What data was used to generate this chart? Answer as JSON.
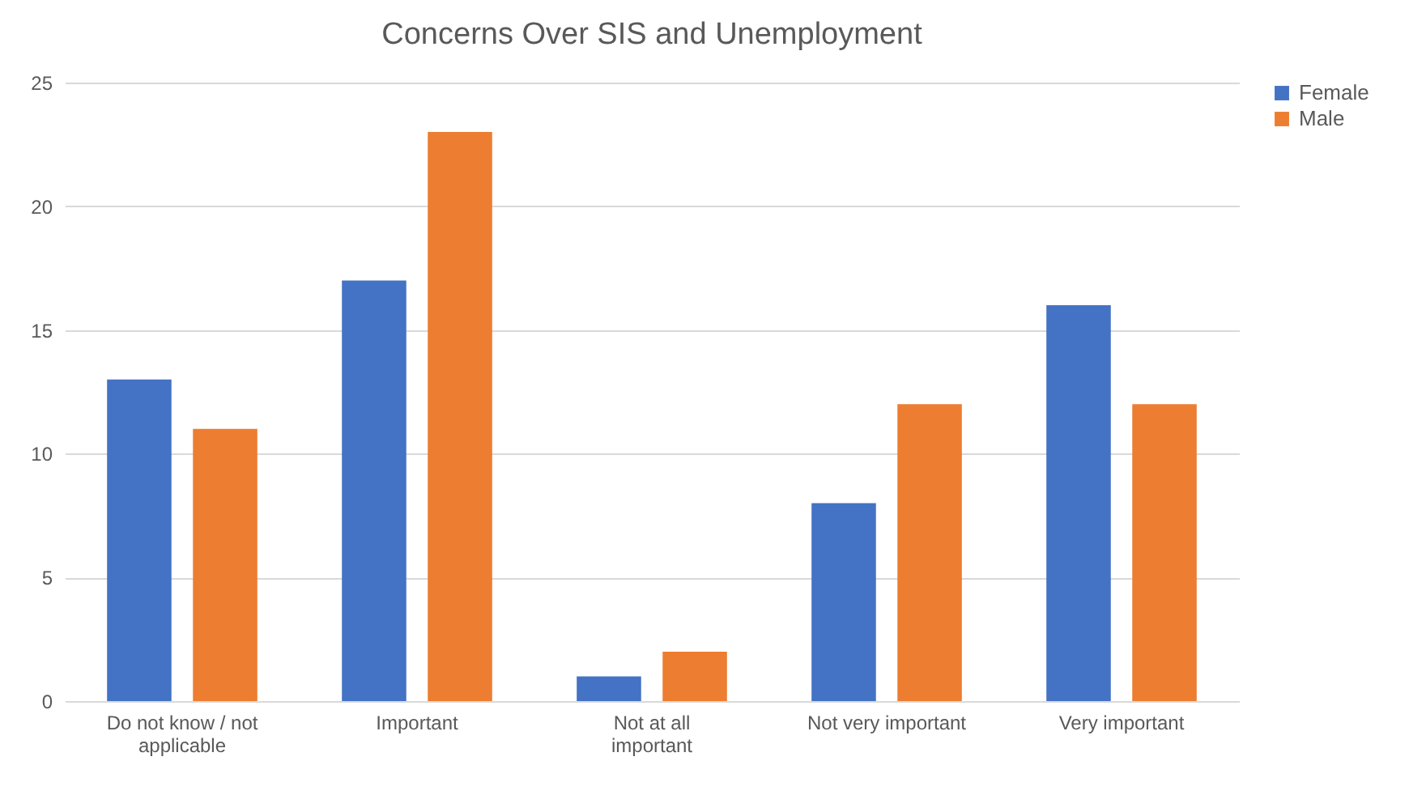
{
  "chart_data": {
    "type": "bar",
    "title": "Concerns Over SIS and Unemployment",
    "categories": [
      "Do not know / not applicable",
      "Important",
      "Not at all important",
      "Not very important",
      "Very important"
    ],
    "series": [
      {
        "name": "Female",
        "color": "#4472c4",
        "values": [
          13,
          17,
          1,
          8,
          16
        ]
      },
      {
        "name": "Male",
        "color": "#ed7d31",
        "values": [
          11,
          23,
          2,
          12,
          12
        ]
      }
    ],
    "ylim": [
      0,
      25
    ],
    "yticks": [
      0,
      5,
      10,
      15,
      20,
      25
    ],
    "grid": "y",
    "legend": "right"
  }
}
